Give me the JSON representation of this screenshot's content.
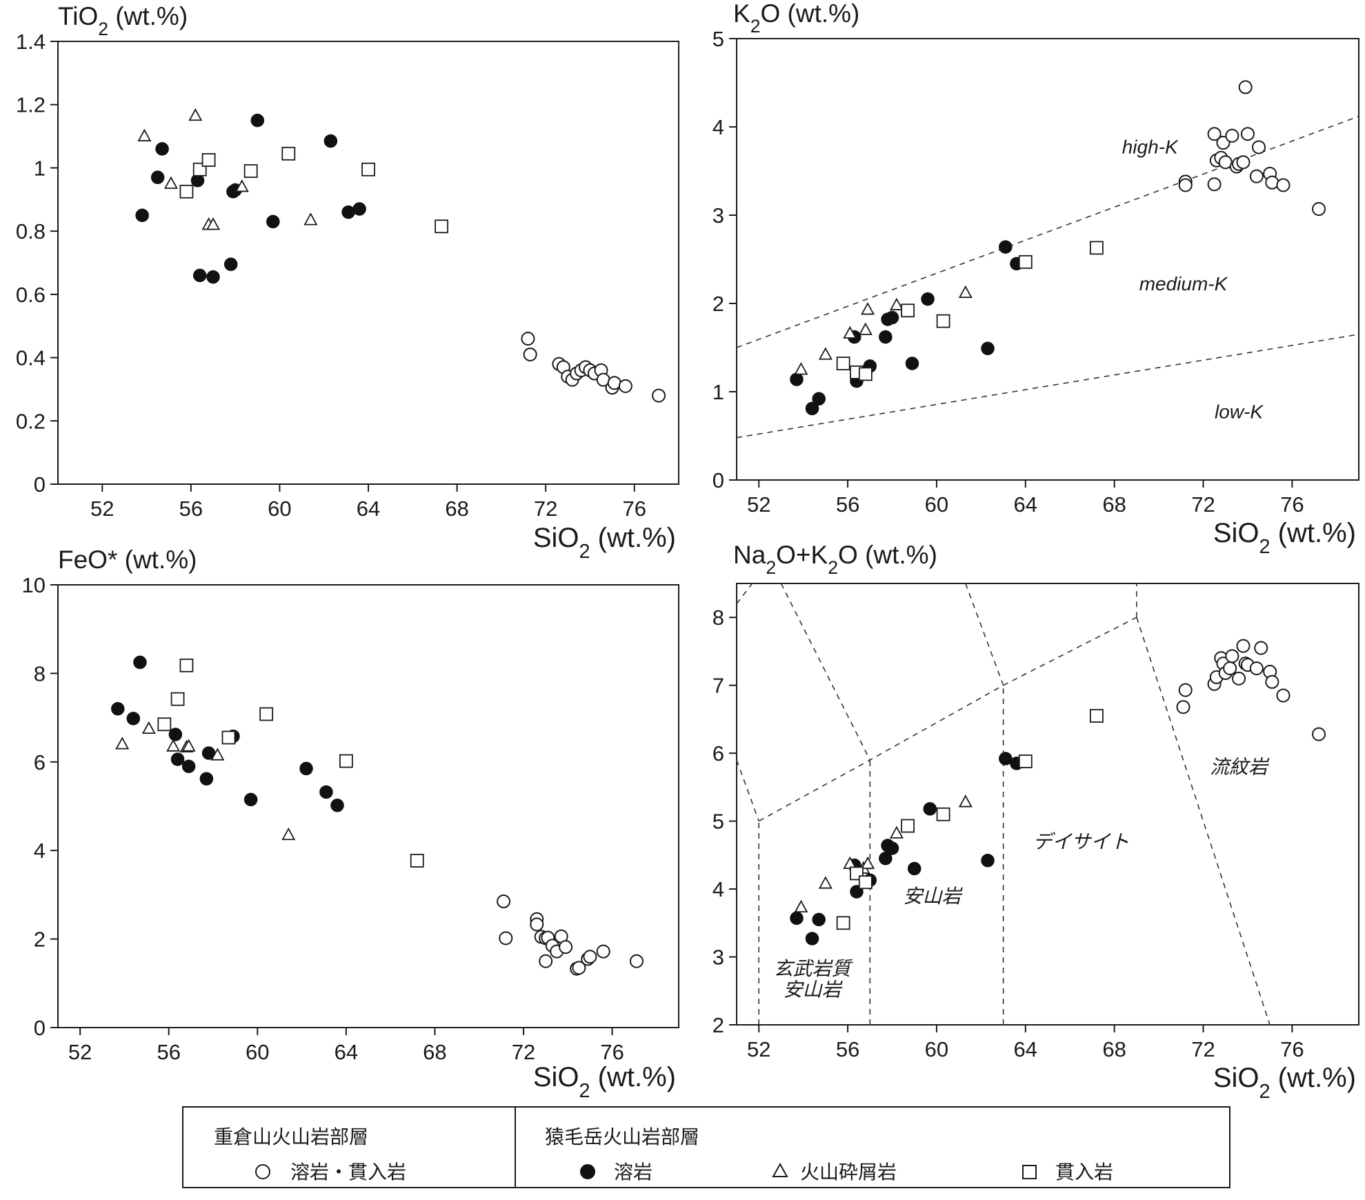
{
  "chart_data": [
    {
      "type": "scatter",
      "ylabel": "TiO2 (wt.%)",
      "xlabel": "SiO2 (wt.%)",
      "xlim": [
        50,
        78
      ],
      "ylim": [
        0,
        1.4
      ],
      "xticks": [
        52,
        56,
        60,
        64,
        68,
        72,
        76
      ],
      "yticks": [
        0,
        0.2,
        0.4,
        0.6,
        0.8,
        1,
        1.2,
        1.4
      ],
      "ytick_labels": [
        "0",
        "0.2",
        "0.4",
        "0.6",
        "0.8",
        "1",
        "1.2",
        "1.4"
      ],
      "series": [
        {
          "name": "溶岩・貫入岩",
          "marker": "circle-open",
          "x": [
            71.2,
            71.3,
            72.6,
            72.8,
            73.0,
            73.2,
            73.4,
            73.6,
            73.8,
            74.0,
            74.2,
            74.5,
            74.6,
            75.0,
            75.1,
            75.6,
            77.1
          ],
          "y": [
            0.46,
            0.41,
            0.38,
            0.37,
            0.34,
            0.33,
            0.35,
            0.36,
            0.37,
            0.36,
            0.35,
            0.36,
            0.33,
            0.305,
            0.32,
            0.31,
            0.28
          ]
        },
        {
          "name": "溶岩",
          "marker": "circle-filled",
          "x": [
            53.8,
            54.5,
            54.7,
            56.3,
            56.4,
            57.0,
            57.8,
            57.9,
            58.0,
            59.7,
            62.3,
            63.1,
            63.6,
            59.0
          ],
          "y": [
            0.85,
            0.97,
            1.06,
            0.96,
            0.66,
            0.655,
            0.695,
            0.925,
            0.93,
            0.83,
            1.085,
            0.86,
            0.87,
            1.15
          ]
        },
        {
          "name": "火山砕屑岩",
          "marker": "triangle-open",
          "x": [
            53.9,
            55.1,
            56.2,
            56.8,
            57.0,
            58.3,
            61.4
          ],
          "y": [
            1.1,
            0.95,
            1.165,
            0.82,
            0.82,
            0.94,
            0.835
          ]
        },
        {
          "name": "貫入岩",
          "marker": "square-open",
          "x": [
            55.8,
            56.4,
            56.8,
            58.7,
            60.4,
            64.0,
            67.3
          ],
          "y": [
            0.925,
            0.995,
            1.025,
            0.99,
            1.045,
            0.995,
            0.815
          ]
        }
      ]
    },
    {
      "type": "scatter",
      "ylabel": "K2O (wt.%)",
      "xlabel": "SiO2 (wt.%)",
      "xlim": [
        51,
        79
      ],
      "ylim": [
        0,
        5
      ],
      "xticks": [
        52,
        56,
        60,
        64,
        68,
        72,
        76
      ],
      "yticks": [
        0,
        1,
        2,
        3,
        4,
        5
      ],
      "ytick_labels": [
        "0",
        "1",
        "2",
        "3",
        "4",
        "5"
      ],
      "boundary_lines": [
        {
          "x": [
            51,
            79
          ],
          "y": [
            1.5,
            4.12
          ]
        },
        {
          "x": [
            51,
            79
          ],
          "y": [
            0.48,
            1.65
          ]
        }
      ],
      "regions": [
        {
          "label": "high-K",
          "x": 69.6,
          "y": 3.7
        },
        {
          "label": "medium-K",
          "x": 71.1,
          "y": 2.15
        },
        {
          "label": "low-K",
          "x": 73.6,
          "y": 0.7
        }
      ],
      "series": [
        {
          "name": "溶岩・貫入岩",
          "marker": "circle-open",
          "x": [
            71.2,
            71.2,
            72.5,
            72.5,
            72.6,
            72.8,
            72.9,
            73.0,
            73.3,
            73.5,
            73.6,
            73.8,
            73.9,
            74.0,
            74.4,
            74.5,
            75.0,
            75.1,
            75.6,
            77.2
          ],
          "y": [
            3.38,
            3.34,
            3.92,
            3.35,
            3.62,
            3.65,
            3.82,
            3.6,
            3.9,
            3.55,
            3.58,
            3.6,
            4.45,
            3.92,
            3.44,
            3.77,
            3.47,
            3.37,
            3.34,
            3.07
          ]
        },
        {
          "name": "溶岩",
          "marker": "circle-filled",
          "x": [
            53.7,
            54.4,
            54.7,
            56.3,
            56.4,
            57.0,
            57.7,
            57.8,
            58.0,
            58.9,
            59.6,
            62.3,
            63.1,
            63.6
          ],
          "y": [
            1.14,
            0.81,
            0.92,
            1.62,
            1.12,
            1.29,
            1.62,
            1.82,
            1.84,
            1.32,
            2.05,
            1.49,
            2.64,
            2.45
          ]
        },
        {
          "name": "火山砕屑岩",
          "marker": "triangle-open",
          "x": [
            53.9,
            55.0,
            56.1,
            56.8,
            56.9,
            58.2,
            61.3
          ],
          "y": [
            1.25,
            1.42,
            1.66,
            1.7,
            1.93,
            1.98,
            2.12
          ]
        },
        {
          "name": "貫入岩",
          "marker": "square-open",
          "x": [
            55.8,
            56.4,
            56.8,
            58.7,
            60.3,
            64.0,
            67.2
          ],
          "y": [
            1.32,
            1.22,
            1.2,
            1.92,
            1.8,
            2.47,
            2.63
          ]
        }
      ]
    },
    {
      "type": "scatter",
      "ylabel": "FeO* (wt.%)",
      "xlabel": "SiO2 (wt.%)",
      "xlim": [
        51,
        79
      ],
      "ylim": [
        0,
        10
      ],
      "xticks": [
        52,
        56,
        60,
        64,
        68,
        72,
        76
      ],
      "yticks": [
        0,
        2,
        4,
        6,
        8,
        10
      ],
      "ytick_labels": [
        "0",
        "2",
        "4",
        "6",
        "8",
        "10"
      ],
      "series": [
        {
          "name": "溶岩・貫入岩",
          "marker": "circle-open",
          "x": [
            71.1,
            71.2,
            72.6,
            72.6,
            72.8,
            73.0,
            73.0,
            73.1,
            73.3,
            73.5,
            73.7,
            73.9,
            74.4,
            74.5,
            74.9,
            75.0,
            75.6,
            77.1
          ],
          "y": [
            2.85,
            2.02,
            2.45,
            2.33,
            2.05,
            1.5,
            2.02,
            2.03,
            1.85,
            1.72,
            2.06,
            1.82,
            1.33,
            1.35,
            1.55,
            1.6,
            1.72,
            1.5
          ]
        },
        {
          "name": "溶岩",
          "marker": "circle-filled",
          "x": [
            53.7,
            54.4,
            54.7,
            56.3,
            56.4,
            56.9,
            57.7,
            57.8,
            58.9,
            59.7,
            62.2,
            63.1,
            63.6
          ],
          "y": [
            7.2,
            6.98,
            8.25,
            6.62,
            6.06,
            5.9,
            5.62,
            6.2,
            6.58,
            5.15,
            5.85,
            5.32,
            5.02
          ]
        },
        {
          "name": "火山砕屑岩",
          "marker": "triangle-open",
          "x": [
            53.9,
            55.1,
            56.2,
            56.8,
            56.9,
            58.2,
            61.4
          ],
          "y": [
            6.4,
            6.75,
            6.35,
            6.33,
            6.35,
            6.15,
            4.35
          ]
        },
        {
          "name": "貫入岩",
          "marker": "square-open",
          "x": [
            55.8,
            56.4,
            56.8,
            58.7,
            60.4,
            64.0,
            67.2
          ],
          "y": [
            6.85,
            7.42,
            8.18,
            6.55,
            7.08,
            6.02,
            3.77
          ]
        }
      ]
    },
    {
      "type": "scatter",
      "ylabel": "Na2O+K2O (wt.%)",
      "xlabel": "SiO2 (wt.%)",
      "xlim": [
        51,
        79
      ],
      "ylim": [
        2,
        8.5
      ],
      "xticks": [
        52,
        56,
        60,
        64,
        68,
        72,
        76
      ],
      "yticks": [
        2,
        3,
        4,
        5,
        6,
        7,
        8
      ],
      "ytick_labels": [
        "2",
        "3",
        "4",
        "5",
        "6",
        "7",
        "8"
      ],
      "boundary_lines": [
        {
          "x": [
            52,
            52
          ],
          "y": [
            2,
            5
          ]
        },
        {
          "x": [
            57,
            57
          ],
          "y": [
            2,
            5.9
          ]
        },
        {
          "x": [
            63,
            63
          ],
          "y": [
            2,
            7
          ]
        },
        {
          "x": [
            52,
            57,
            63,
            69
          ],
          "y": [
            5,
            5.9,
            7,
            8
          ]
        },
        {
          "x": [
            51,
            52
          ],
          "y": [
            5.9,
            5
          ]
        },
        {
          "x": [
            51,
            51.7
          ],
          "y": [
            8.2,
            8.5
          ]
        },
        {
          "x": [
            53.0,
            57
          ],
          "y": [
            8.5,
            5.9
          ]
        },
        {
          "x": [
            61.3,
            63
          ],
          "y": [
            8.5,
            7
          ]
        },
        {
          "x": [
            69,
            69
          ],
          "y": [
            8,
            8.5
          ]
        },
        {
          "x": [
            69,
            75.0
          ],
          "y": [
            8,
            2
          ]
        }
      ],
      "regions": [
        {
          "label": "玄武岩質",
          "x": 54.4,
          "y": 2.73
        },
        {
          "label": "安山岩",
          "x": 54.4,
          "y": 2.42
        },
        {
          "label": "安山岩",
          "x": 59.8,
          "y": 3.8
        },
        {
          "label": "デイサイト",
          "x": 66.5,
          "y": 4.6
        },
        {
          "label": "流紋岩",
          "x": 73.6,
          "y": 5.7
        }
      ],
      "series": [
        {
          "name": "溶岩・貫入岩",
          "marker": "circle-open",
          "x": [
            71.1,
            71.2,
            72.5,
            72.6,
            72.8,
            72.9,
            73.0,
            73.2,
            73.3,
            73.6,
            73.8,
            73.9,
            74.0,
            74.4,
            74.6,
            75.0,
            75.1,
            75.6,
            77.2
          ],
          "y": [
            6.68,
            6.93,
            7.02,
            7.12,
            7.4,
            7.32,
            7.18,
            7.25,
            7.43,
            7.1,
            7.58,
            7.32,
            7.3,
            7.25,
            7.55,
            7.2,
            7.05,
            6.85,
            6.28
          ]
        },
        {
          "name": "溶岩",
          "marker": "circle-filled",
          "x": [
            53.7,
            54.4,
            54.7,
            56.3,
            56.4,
            57.0,
            57.7,
            57.8,
            58.0,
            59.0,
            59.7,
            62.3,
            63.1,
            63.6
          ],
          "y": [
            3.57,
            3.27,
            3.55,
            4.35,
            3.96,
            4.13,
            4.45,
            4.64,
            4.6,
            4.3,
            5.18,
            4.42,
            5.92,
            5.85
          ]
        },
        {
          "name": "火山砕屑岩",
          "marker": "triangle-open",
          "x": [
            53.9,
            55.0,
            56.1,
            56.7,
            56.9,
            58.2,
            61.3
          ],
          "y": [
            3.73,
            4.08,
            4.37,
            4.3,
            4.37,
            4.82,
            5.28
          ]
        },
        {
          "name": "貫入岩",
          "marker": "square-open",
          "x": [
            55.8,
            56.4,
            56.8,
            58.7,
            60.3,
            64.0,
            67.2
          ],
          "y": [
            3.5,
            4.23,
            4.1,
            4.93,
            5.1,
            5.88,
            6.55
          ]
        }
      ]
    }
  ],
  "legend": {
    "group1_title": "重倉山火山岩部層",
    "group1_item": "溶岩・貫入岩",
    "group2_title": "猿毛岳火山岩部層",
    "group2_item1": "溶岩",
    "group2_item2": "火山砕屑岩",
    "group2_item3": "貫入岩"
  }
}
